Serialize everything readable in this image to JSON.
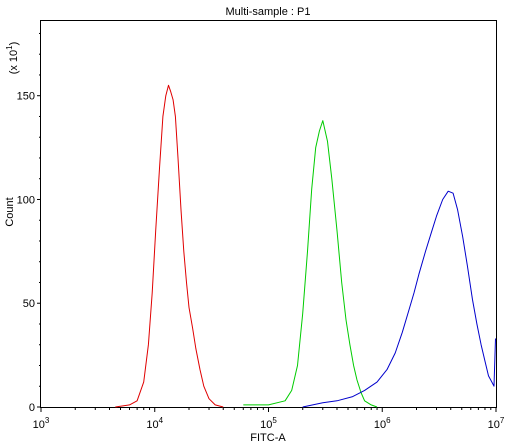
{
  "chart_data": {
    "type": "line",
    "title": "Multi-sample : P1",
    "xlabel": "FITC-A",
    "ylabel": "Count",
    "y_multiplier": "(x 10",
    "y_multiplier_exp": "1",
    "y_multiplier_close": ")",
    "x_scale": "log",
    "xlim": [
      1000,
      10000000
    ],
    "ylim": [
      0,
      186
    ],
    "x_ticks": [
      {
        "value": 1000,
        "base": "10",
        "exp": "3"
      },
      {
        "value": 10000,
        "base": "10",
        "exp": "4"
      },
      {
        "value": 100000,
        "base": "10",
        "exp": "5"
      },
      {
        "value": 1000000,
        "base": "10",
        "exp": "6"
      },
      {
        "value": 10000000,
        "base": "10",
        "exp": "7"
      }
    ],
    "y_ticks": [
      0,
      50,
      100,
      150
    ],
    "grid": false,
    "series": [
      {
        "color": "#e00000",
        "points": [
          [
            4500,
            0
          ],
          [
            6000,
            1
          ],
          [
            7000,
            3
          ],
          [
            8000,
            12
          ],
          [
            8800,
            30
          ],
          [
            9500,
            55
          ],
          [
            10200,
            85
          ],
          [
            11000,
            115
          ],
          [
            11800,
            140
          ],
          [
            12500,
            150
          ],
          [
            13200,
            155
          ],
          [
            13800,
            152
          ],
          [
            14500,
            148
          ],
          [
            15200,
            140
          ],
          [
            16000,
            120
          ],
          [
            17000,
            95
          ],
          [
            18000,
            75
          ],
          [
            19000,
            60
          ],
          [
            20000,
            48
          ],
          [
            21500,
            38
          ],
          [
            23000,
            28
          ],
          [
            25000,
            18
          ],
          [
            27000,
            10
          ],
          [
            30000,
            4
          ],
          [
            34000,
            1
          ],
          [
            40000,
            0
          ]
        ]
      },
      {
        "color": "#00cc00",
        "points": [
          [
            60000,
            1
          ],
          [
            100000,
            1
          ],
          [
            140000,
            3
          ],
          [
            160000,
            8
          ],
          [
            180000,
            20
          ],
          [
            200000,
            45
          ],
          [
            220000,
            75
          ],
          [
            240000,
            105
          ],
          [
            260000,
            125
          ],
          [
            280000,
            133
          ],
          [
            300000,
            138
          ],
          [
            330000,
            128
          ],
          [
            360000,
            110
          ],
          [
            400000,
            85
          ],
          [
            440000,
            60
          ],
          [
            480000,
            42
          ],
          [
            520000,
            30
          ],
          [
            560000,
            20
          ],
          [
            600000,
            13
          ],
          [
            650000,
            7
          ],
          [
            700000,
            3
          ],
          [
            800000,
            1
          ],
          [
            900000,
            0
          ]
        ]
      },
      {
        "color": "#0000cc",
        "points": [
          [
            200000,
            0
          ],
          [
            300000,
            2
          ],
          [
            400000,
            3
          ],
          [
            550000,
            5
          ],
          [
            700000,
            8
          ],
          [
            900000,
            12
          ],
          [
            1100000,
            18
          ],
          [
            1300000,
            26
          ],
          [
            1500000,
            36
          ],
          [
            1700000,
            46
          ],
          [
            1900000,
            55
          ],
          [
            2100000,
            64
          ],
          [
            2400000,
            75
          ],
          [
            2700000,
            84
          ],
          [
            3000000,
            92
          ],
          [
            3400000,
            100
          ],
          [
            3800000,
            104
          ],
          [
            4200000,
            103
          ],
          [
            4600000,
            95
          ],
          [
            5100000,
            82
          ],
          [
            5600000,
            68
          ],
          [
            6200000,
            52
          ],
          [
            6800000,
            40
          ],
          [
            7400000,
            30
          ],
          [
            8000000,
            22
          ],
          [
            8600000,
            15
          ],
          [
            9200000,
            12
          ],
          [
            9600000,
            10
          ],
          [
            9900000,
            33
          ]
        ]
      }
    ]
  }
}
